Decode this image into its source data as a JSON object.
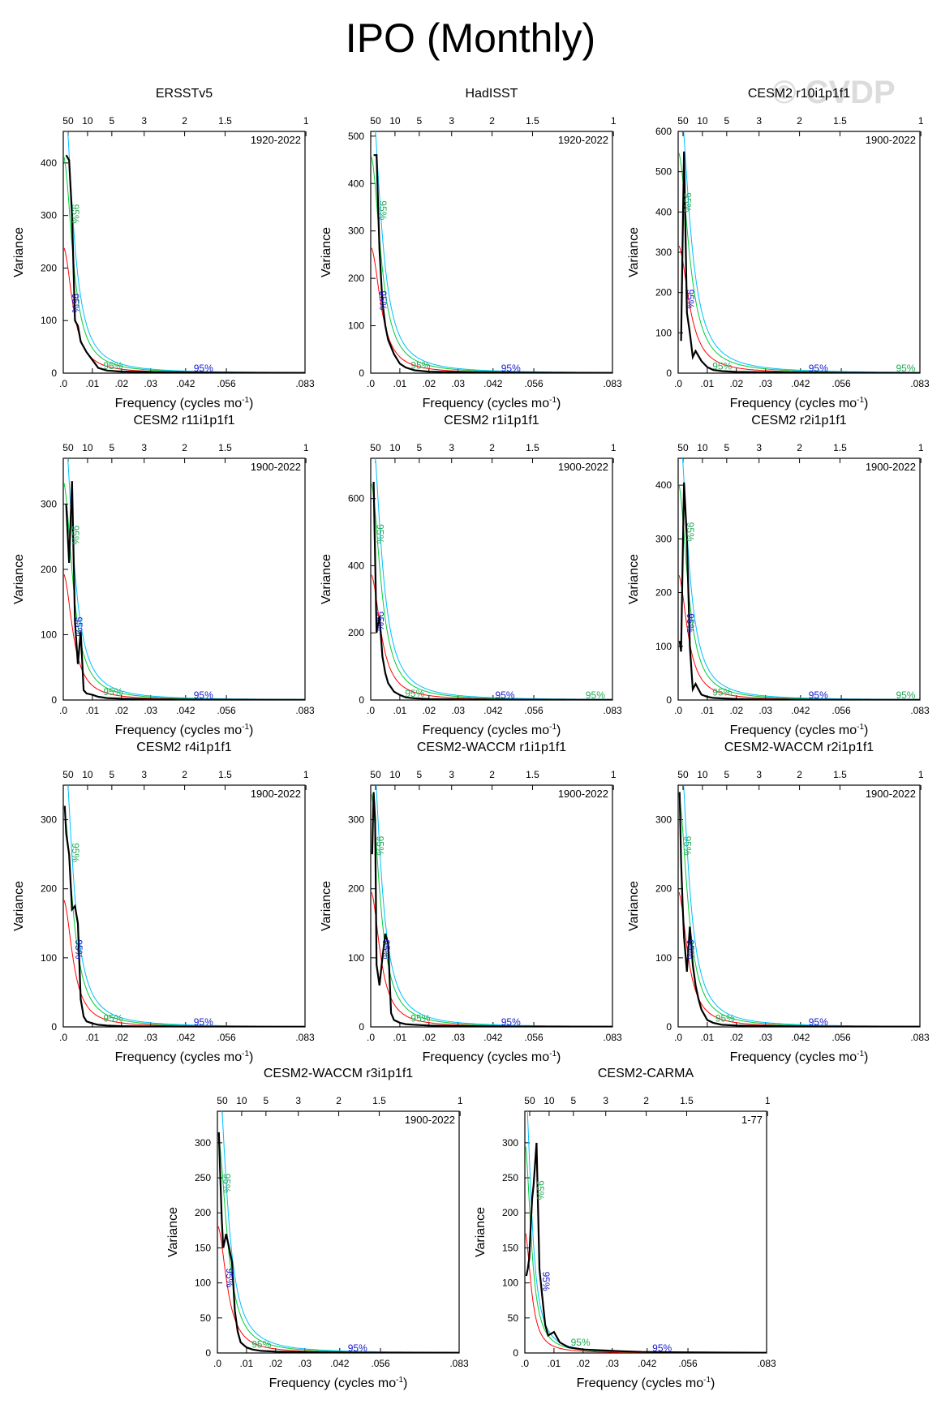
{
  "page": {
    "title": "IPO (Monthly)",
    "watermark": "© CVDP"
  },
  "common": {
    "xlabel": "Frequency (cycles mo",
    "xlabel_sup": "-1",
    "ylabel": "Variance",
    "x_ticks": [
      ".0",
      ".01",
      ".02",
      ".03",
      ".042",
      ".056",
      ".083"
    ],
    "x_tick_values": [
      0,
      0.01,
      0.02,
      0.03,
      0.042,
      0.056,
      0.083
    ],
    "period_ticks": [
      "50",
      "10",
      "5",
      "3",
      "2",
      "1.5",
      "1"
    ],
    "period_tick_values": [
      50,
      10,
      5,
      3,
      2,
      1.5,
      1
    ],
    "xlim": [
      0,
      0.083
    ],
    "sig_label": "95%",
    "colors": {
      "spectrum": "#000000",
      "red_noise": "#ff0000",
      "sig95": "#00cc33",
      "sig99": "#00bfff",
      "sig_text_a": "#22aa55",
      "sig_text_b": "#1a1acc"
    }
  },
  "chart_data": [
    {
      "type": "line",
      "title": "ERSSTv5",
      "period": "1920-2022",
      "ylim": [
        0,
        460
      ],
      "yticks": [
        0,
        100,
        200,
        300,
        400
      ],
      "x": [
        0.001,
        0.002,
        0.003,
        0.004,
        0.005,
        0.006,
        0.008,
        0.01,
        0.012,
        0.015,
        0.02,
        0.03,
        0.05,
        0.083
      ],
      "series": [
        {
          "values": [
            415,
            405,
            300,
            100,
            90,
            60,
            40,
            25,
            10,
            5,
            3,
            2,
            1,
            0.5
          ]
        }
      ],
      "red_noise_a": 3.0,
      "sig_labels": [
        [
          0.002,
          300
        ],
        [
          0.002,
          130
        ],
        [
          0.016,
          5
        ],
        [
          0.047,
          0
        ]
      ]
    },
    {
      "type": "line",
      "title": "HadISST",
      "period": "1920-2022",
      "ylim": [
        0,
        510
      ],
      "yticks": [
        0,
        100,
        200,
        300,
        400,
        500
      ],
      "x": [
        0.001,
        0.002,
        0.003,
        0.004,
        0.005,
        0.006,
        0.008,
        0.01,
        0.012,
        0.015,
        0.02,
        0.03,
        0.05,
        0.083
      ],
      "series": [
        {
          "values": [
            460,
            460,
            260,
            150,
            100,
            70,
            40,
            20,
            12,
            6,
            3,
            2,
            1,
            0.5
          ]
        }
      ],
      "red_noise_a": 3.2,
      "sig_labels": [
        [
          0.002,
          340
        ],
        [
          0.002,
          150
        ],
        [
          0.016,
          6
        ],
        [
          0.047,
          0
        ]
      ]
    },
    {
      "type": "line",
      "title": "CESM2 r10i1p1f1",
      "period": "1900-2022",
      "ylim": [
        0,
        600
      ],
      "yticks": [
        0,
        100,
        200,
        300,
        400,
        500,
        600
      ],
      "x": [
        0.001,
        0.002,
        0.003,
        0.004,
        0.005,
        0.006,
        0.008,
        0.01,
        0.012,
        0.015,
        0.02,
        0.03,
        0.05,
        0.083
      ],
      "series": [
        {
          "values": [
            80,
            550,
            150,
            100,
            40,
            55,
            30,
            15,
            8,
            5,
            3,
            2,
            1,
            0.5
          ]
        }
      ],
      "red_noise_a": 3.5,
      "sig_labels": [
        [
          0.001,
          420
        ],
        [
          0.002,
          180
        ],
        [
          0.014,
          5
        ],
        [
          0.047,
          0
        ],
        [
          0.077,
          0
        ]
      ]
    },
    {
      "type": "line",
      "title": "CESM2 r11i1p1f1",
      "period": "1900-2022",
      "ylim": [
        0,
        370
      ],
      "yticks": [
        0,
        100,
        200,
        300
      ],
      "x": [
        0.001,
        0.002,
        0.003,
        0.004,
        0.005,
        0.006,
        0.007,
        0.008,
        0.01,
        0.012,
        0.015,
        0.02,
        0.03,
        0.05,
        0.083
      ],
      "series": [
        {
          "values": [
            300,
            210,
            335,
            120,
            55,
            105,
            15,
            10,
            8,
            5,
            3,
            2,
            1,
            0.5,
            0.3
          ]
        }
      ],
      "red_noise_a": 3.0,
      "sig_labels": [
        [
          0.002,
          250
        ],
        [
          0.003,
          110
        ],
        [
          0.016,
          5
        ],
        [
          0.047,
          0
        ]
      ]
    },
    {
      "type": "line",
      "title": "CESM2 r1i1p1f1",
      "period": "1900-2022",
      "ylim": [
        0,
        720
      ],
      "yticks": [
        0,
        200,
        400,
        600
      ],
      "x": [
        0.001,
        0.002,
        0.003,
        0.004,
        0.005,
        0.006,
        0.008,
        0.01,
        0.012,
        0.015,
        0.02,
        0.03,
        0.05,
        0.083
      ],
      "series": [
        {
          "values": [
            650,
            200,
            250,
            130,
            80,
            50,
            25,
            15,
            8,
            5,
            3,
            2,
            1,
            0.5
          ]
        }
      ],
      "red_noise_a": 3.2,
      "sig_labels": [
        [
          0.001,
          490
        ],
        [
          0.001,
          230
        ],
        [
          0.014,
          5
        ],
        [
          0.045,
          0
        ],
        [
          0.076,
          0
        ]
      ]
    },
    {
      "type": "line",
      "title": "CESM2 r2i1p1f1",
      "period": "1900-2022",
      "ylim": [
        0,
        450
      ],
      "yticks": [
        0,
        100,
        200,
        300,
        400
      ],
      "x": [
        0.0005,
        0.001,
        0.002,
        0.003,
        0.004,
        0.005,
        0.006,
        0.007,
        0.008,
        0.01,
        0.012,
        0.015,
        0.02,
        0.03,
        0.05,
        0.083
      ],
      "series": [
        {
          "values": [
            110,
            90,
            405,
            300,
            100,
            20,
            30,
            20,
            10,
            6,
            4,
            3,
            2,
            1,
            0.5,
            0.3
          ]
        }
      ],
      "red_noise_a": 3.0,
      "sig_labels": [
        [
          0.002,
          310
        ],
        [
          0.002,
          140
        ],
        [
          0.014,
          5
        ],
        [
          0.047,
          0
        ],
        [
          0.077,
          0
        ]
      ]
    },
    {
      "type": "line",
      "title": "CESM2 r4i1p1f1",
      "period": "1900-2022",
      "ylim": [
        0,
        350
      ],
      "yticks": [
        0,
        100,
        200,
        300
      ],
      "x": [
        0.0005,
        0.001,
        0.002,
        0.003,
        0.004,
        0.005,
        0.006,
        0.007,
        0.008,
        0.01,
        0.012,
        0.015,
        0.02,
        0.03,
        0.05,
        0.083
      ],
      "series": [
        {
          "values": [
            320,
            280,
            250,
            170,
            175,
            150,
            40,
            15,
            8,
            5,
            3,
            2,
            1,
            0.5,
            0.3,
            0.2
          ]
        }
      ],
      "red_noise_a": 3.0,
      "sig_labels": [
        [
          0.002,
          250
        ],
        [
          0.003,
          110
        ],
        [
          0.016,
          5
        ],
        [
          0.047,
          0
        ]
      ]
    },
    {
      "type": "line",
      "title": "CESM2-WACCM r1i1p1f1",
      "period": "1900-2022",
      "ylim": [
        0,
        350
      ],
      "yticks": [
        0,
        100,
        200,
        300
      ],
      "x": [
        0.0005,
        0.001,
        0.0015,
        0.002,
        0.003,
        0.004,
        0.005,
        0.006,
        0.007,
        0.008,
        0.01,
        0.012,
        0.015,
        0.02,
        0.03,
        0.05,
        0.083
      ],
      "series": [
        {
          "values": [
            250,
            340,
            300,
            90,
            60,
            100,
            135,
            120,
            20,
            10,
            6,
            4,
            3,
            2,
            1,
            0.5,
            0.3
          ]
        }
      ],
      "red_noise_a": 3.0,
      "sig_labels": [
        [
          0.001,
          260
        ],
        [
          0.003,
          110
        ],
        [
          0.016,
          5
        ],
        [
          0.047,
          0
        ]
      ]
    },
    {
      "type": "line",
      "title": "CESM2-WACCM r2i1p1f1",
      "period": "1900-2022",
      "ylim": [
        0,
        350
      ],
      "yticks": [
        0,
        100,
        200,
        300
      ],
      "x": [
        0.0005,
        0.001,
        0.0015,
        0.002,
        0.003,
        0.004,
        0.005,
        0.006,
        0.007,
        0.008,
        0.01,
        0.012,
        0.015,
        0.02,
        0.03,
        0.05,
        0.083
      ],
      "series": [
        {
          "values": [
            340,
            240,
            180,
            130,
            80,
            145,
            90,
            60,
            40,
            25,
            10,
            6,
            3,
            2,
            1,
            0.5,
            0.3
          ]
        }
      ],
      "red_noise_a": 3.0,
      "sig_labels": [
        [
          0.001,
          260
        ],
        [
          0.002,
          110
        ],
        [
          0.015,
          5
        ],
        [
          0.047,
          0
        ]
      ]
    },
    {
      "type": "line",
      "title": "CESM2-WACCM r3i1p1f1",
      "period": "1900-2022",
      "ylim": [
        0,
        345
      ],
      "yticks": [
        0,
        50,
        100,
        150,
        200,
        250,
        300
      ],
      "x": [
        0.0005,
        0.001,
        0.0015,
        0.002,
        0.003,
        0.004,
        0.005,
        0.006,
        0.007,
        0.008,
        0.01,
        0.012,
        0.015,
        0.02,
        0.03,
        0.05,
        0.083
      ],
      "series": [
        {
          "values": [
            315,
            250,
            190,
            150,
            170,
            150,
            130,
            60,
            30,
            15,
            8,
            5,
            3,
            2,
            1,
            0.5,
            0.3
          ]
        }
      ],
      "red_noise_a": 3.0,
      "sig_labels": [
        [
          0.001,
          240
        ],
        [
          0.002,
          105
        ],
        [
          0.014,
          5
        ],
        [
          0.047,
          0
        ]
      ]
    },
    {
      "type": "line",
      "title": "CESM2-CARMA",
      "period": "1-77",
      "ylim": [
        0,
        345
      ],
      "yticks": [
        0,
        50,
        100,
        150,
        200,
        250,
        300
      ],
      "x": [
        0.0005,
        0.001,
        0.0015,
        0.002,
        0.0025,
        0.003,
        0.004,
        0.005,
        0.006,
        0.007,
        0.008,
        0.01,
        0.012,
        0.015,
        0.02,
        0.03,
        0.04,
        0.05,
        0.083
      ],
      "series": [
        {
          "values": [
            110,
            120,
            135,
            180,
            220,
            240,
            300,
            120,
            80,
            40,
            25,
            30,
            15,
            8,
            5,
            3,
            1.5,
            1,
            0.3
          ]
        }
      ],
      "red_noise_a": 2.0,
      "sig_labels": [
        [
          0.003,
          230
        ],
        [
          0.005,
          100
        ],
        [
          0.018,
          8
        ],
        [
          0.046,
          0
        ]
      ]
    }
  ]
}
